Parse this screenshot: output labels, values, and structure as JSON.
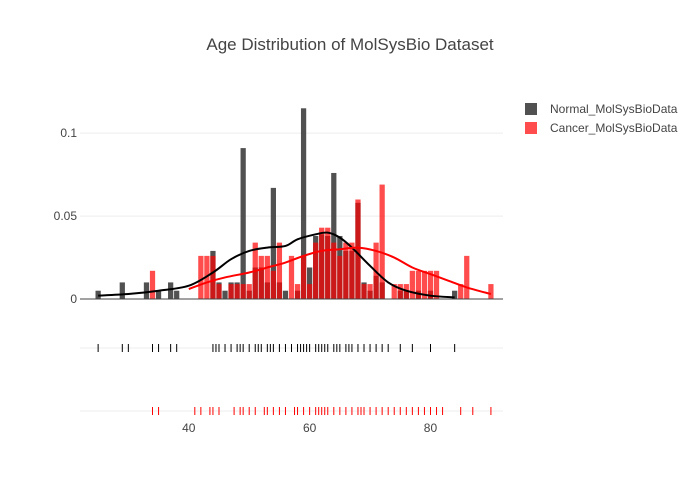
{
  "chart_data": {
    "type": "histogram",
    "title": "Age Distribution of MolSysBio Dataset",
    "xlabel": "",
    "ylabel": "",
    "xlim": [
      22,
      92
    ],
    "ylim": [
      0,
      0.12
    ],
    "x_ticks": [
      40,
      60,
      80
    ],
    "y_ticks": [
      0,
      0.05,
      0.1
    ],
    "y_tick_labels": [
      "0",
      "0.05",
      "0.1"
    ],
    "grid": true,
    "legend": "top-right",
    "bin_width": 1,
    "series": [
      {
        "name": "Normal_MolSysBioData",
        "color": "#333333",
        "opacity": 0.85,
        "bins": [
          {
            "x": 25,
            "y": 0.005
          },
          {
            "x": 29,
            "y": 0.01
          },
          {
            "x": 33,
            "y": 0.01
          },
          {
            "x": 35,
            "y": 0.005
          },
          {
            "x": 37,
            "y": 0.01
          },
          {
            "x": 38,
            "y": 0.005
          },
          {
            "x": 44,
            "y": 0.029
          },
          {
            "x": 45,
            "y": 0.01
          },
          {
            "x": 46,
            "y": 0.005
          },
          {
            "x": 47,
            "y": 0.01
          },
          {
            "x": 48,
            "y": 0.01
          },
          {
            "x": 49,
            "y": 0.091
          },
          {
            "x": 50,
            "y": 0.005
          },
          {
            "x": 51,
            "y": 0.019
          },
          {
            "x": 52,
            "y": 0.019
          },
          {
            "x": 53,
            "y": 0.01
          },
          {
            "x": 54,
            "y": 0.067
          },
          {
            "x": 55,
            "y": 0.01
          },
          {
            "x": 56,
            "y": 0.005
          },
          {
            "x": 58,
            "y": 0.005
          },
          {
            "x": 59,
            "y": 0.115
          },
          {
            "x": 60,
            "y": 0.019
          },
          {
            "x": 61,
            "y": 0.038
          },
          {
            "x": 62,
            "y": 0.039
          },
          {
            "x": 63,
            "y": 0.038
          },
          {
            "x": 64,
            "y": 0.076
          },
          {
            "x": 65,
            "y": 0.038
          },
          {
            "x": 66,
            "y": 0.029
          },
          {
            "x": 67,
            "y": 0.029
          },
          {
            "x": 68,
            "y": 0.058
          },
          {
            "x": 69,
            "y": 0.01
          },
          {
            "x": 70,
            "y": 0.005
          },
          {
            "x": 71,
            "y": 0.014
          },
          {
            "x": 72,
            "y": 0.01
          },
          {
            "x": 75,
            "y": 0.005
          },
          {
            "x": 76,
            "y": 0.005
          },
          {
            "x": 78,
            "y": 0.005
          },
          {
            "x": 80,
            "y": 0.005
          },
          {
            "x": 84,
            "y": 0.005
          }
        ],
        "kde": [
          [
            25,
            0.002
          ],
          [
            30,
            0.003
          ],
          [
            35,
            0.005
          ],
          [
            40,
            0.008
          ],
          [
            44,
            0.016
          ],
          [
            47,
            0.024
          ],
          [
            50,
            0.029
          ],
          [
            53,
            0.031
          ],
          [
            56,
            0.032
          ],
          [
            58,
            0.036
          ],
          [
            61,
            0.039
          ],
          [
            63,
            0.04
          ],
          [
            65,
            0.037
          ],
          [
            67,
            0.031
          ],
          [
            70,
            0.02
          ],
          [
            73,
            0.01
          ],
          [
            76,
            0.005
          ],
          [
            80,
            0.002
          ],
          [
            84,
            0.001
          ]
        ]
      },
      {
        "name": "Cancer_MolSysBioData",
        "color": "#ff0000",
        "opacity": 0.7,
        "bins": [
          {
            "x": 34,
            "y": 0.017
          },
          {
            "x": 42,
            "y": 0.026
          },
          {
            "x": 43,
            "y": 0.026
          },
          {
            "x": 44,
            "y": 0.026
          },
          {
            "x": 45,
            "y": 0.009
          },
          {
            "x": 47,
            "y": 0.009
          },
          {
            "x": 48,
            "y": 0.009
          },
          {
            "x": 49,
            "y": 0.009
          },
          {
            "x": 50,
            "y": 0.009
          },
          {
            "x": 51,
            "y": 0.034
          },
          {
            "x": 52,
            "y": 0.026
          },
          {
            "x": 53,
            "y": 0.026
          },
          {
            "x": 54,
            "y": 0.017
          },
          {
            "x": 55,
            "y": 0.034
          },
          {
            "x": 57,
            "y": 0.026
          },
          {
            "x": 58,
            "y": 0.009
          },
          {
            "x": 59,
            "y": 0.026
          },
          {
            "x": 60,
            "y": 0.009
          },
          {
            "x": 61,
            "y": 0.034
          },
          {
            "x": 62,
            "y": 0.043
          },
          {
            "x": 63,
            "y": 0.043
          },
          {
            "x": 64,
            "y": 0.034
          },
          {
            "x": 65,
            "y": 0.026
          },
          {
            "x": 66,
            "y": 0.034
          },
          {
            "x": 67,
            "y": 0.034
          },
          {
            "x": 68,
            "y": 0.06
          },
          {
            "x": 69,
            "y": 0.009
          },
          {
            "x": 70,
            "y": 0.009
          },
          {
            "x": 71,
            "y": 0.034
          },
          {
            "x": 72,
            "y": 0.069
          },
          {
            "x": 74,
            "y": 0.009
          },
          {
            "x": 75,
            "y": 0.009
          },
          {
            "x": 76,
            "y": 0.009
          },
          {
            "x": 77,
            "y": 0.017
          },
          {
            "x": 78,
            "y": 0.017
          },
          {
            "x": 79,
            "y": 0.017
          },
          {
            "x": 80,
            "y": 0.017
          },
          {
            "x": 81,
            "y": 0.017
          },
          {
            "x": 85,
            "y": 0.009
          },
          {
            "x": 86,
            "y": 0.026
          },
          {
            "x": 90,
            "y": 0.009
          }
        ],
        "kde": [
          [
            40,
            0.006
          ],
          [
            43,
            0.01
          ],
          [
            46,
            0.013
          ],
          [
            50,
            0.016
          ],
          [
            53,
            0.019
          ],
          [
            56,
            0.022
          ],
          [
            59,
            0.026
          ],
          [
            62,
            0.029
          ],
          [
            65,
            0.03
          ],
          [
            68,
            0.031
          ],
          [
            71,
            0.029
          ],
          [
            74,
            0.025
          ],
          [
            77,
            0.019
          ],
          [
            80,
            0.015
          ],
          [
            83,
            0.011
          ],
          [
            86,
            0.007
          ],
          [
            90,
            0.003
          ]
        ]
      }
    ],
    "rug": [
      {
        "name": "Normal_MolSysBioData",
        "color": "#000000",
        "x": [
          25,
          29,
          30,
          34,
          35,
          37,
          38,
          44,
          44.5,
          45,
          46,
          47,
          48,
          48.5,
          49,
          50,
          51,
          51.5,
          52,
          53,
          53.5,
          54,
          55,
          56,
          57,
          58,
          58.5,
          59,
          59.5,
          60,
          61,
          61.5,
          62,
          62.5,
          63,
          64,
          64.5,
          65,
          66,
          66.5,
          67,
          68,
          69,
          70,
          71,
          72,
          73,
          75,
          77,
          80,
          84
        ]
      },
      {
        "name": "Cancer_MolSysBioData",
        "color": "#ff0000",
        "x": [
          34,
          35,
          41,
          42,
          43.5,
          44,
          45,
          47.5,
          48.5,
          49,
          50,
          51,
          52.5,
          53,
          54,
          55,
          56,
          57.5,
          58,
          59,
          60,
          61,
          61.5,
          62,
          62.5,
          63,
          64,
          65,
          66,
          67,
          68,
          68.5,
          69,
          70,
          71,
          72,
          73,
          74,
          75,
          76,
          77,
          78,
          79,
          80,
          81,
          82,
          85,
          87,
          90
        ]
      }
    ]
  }
}
